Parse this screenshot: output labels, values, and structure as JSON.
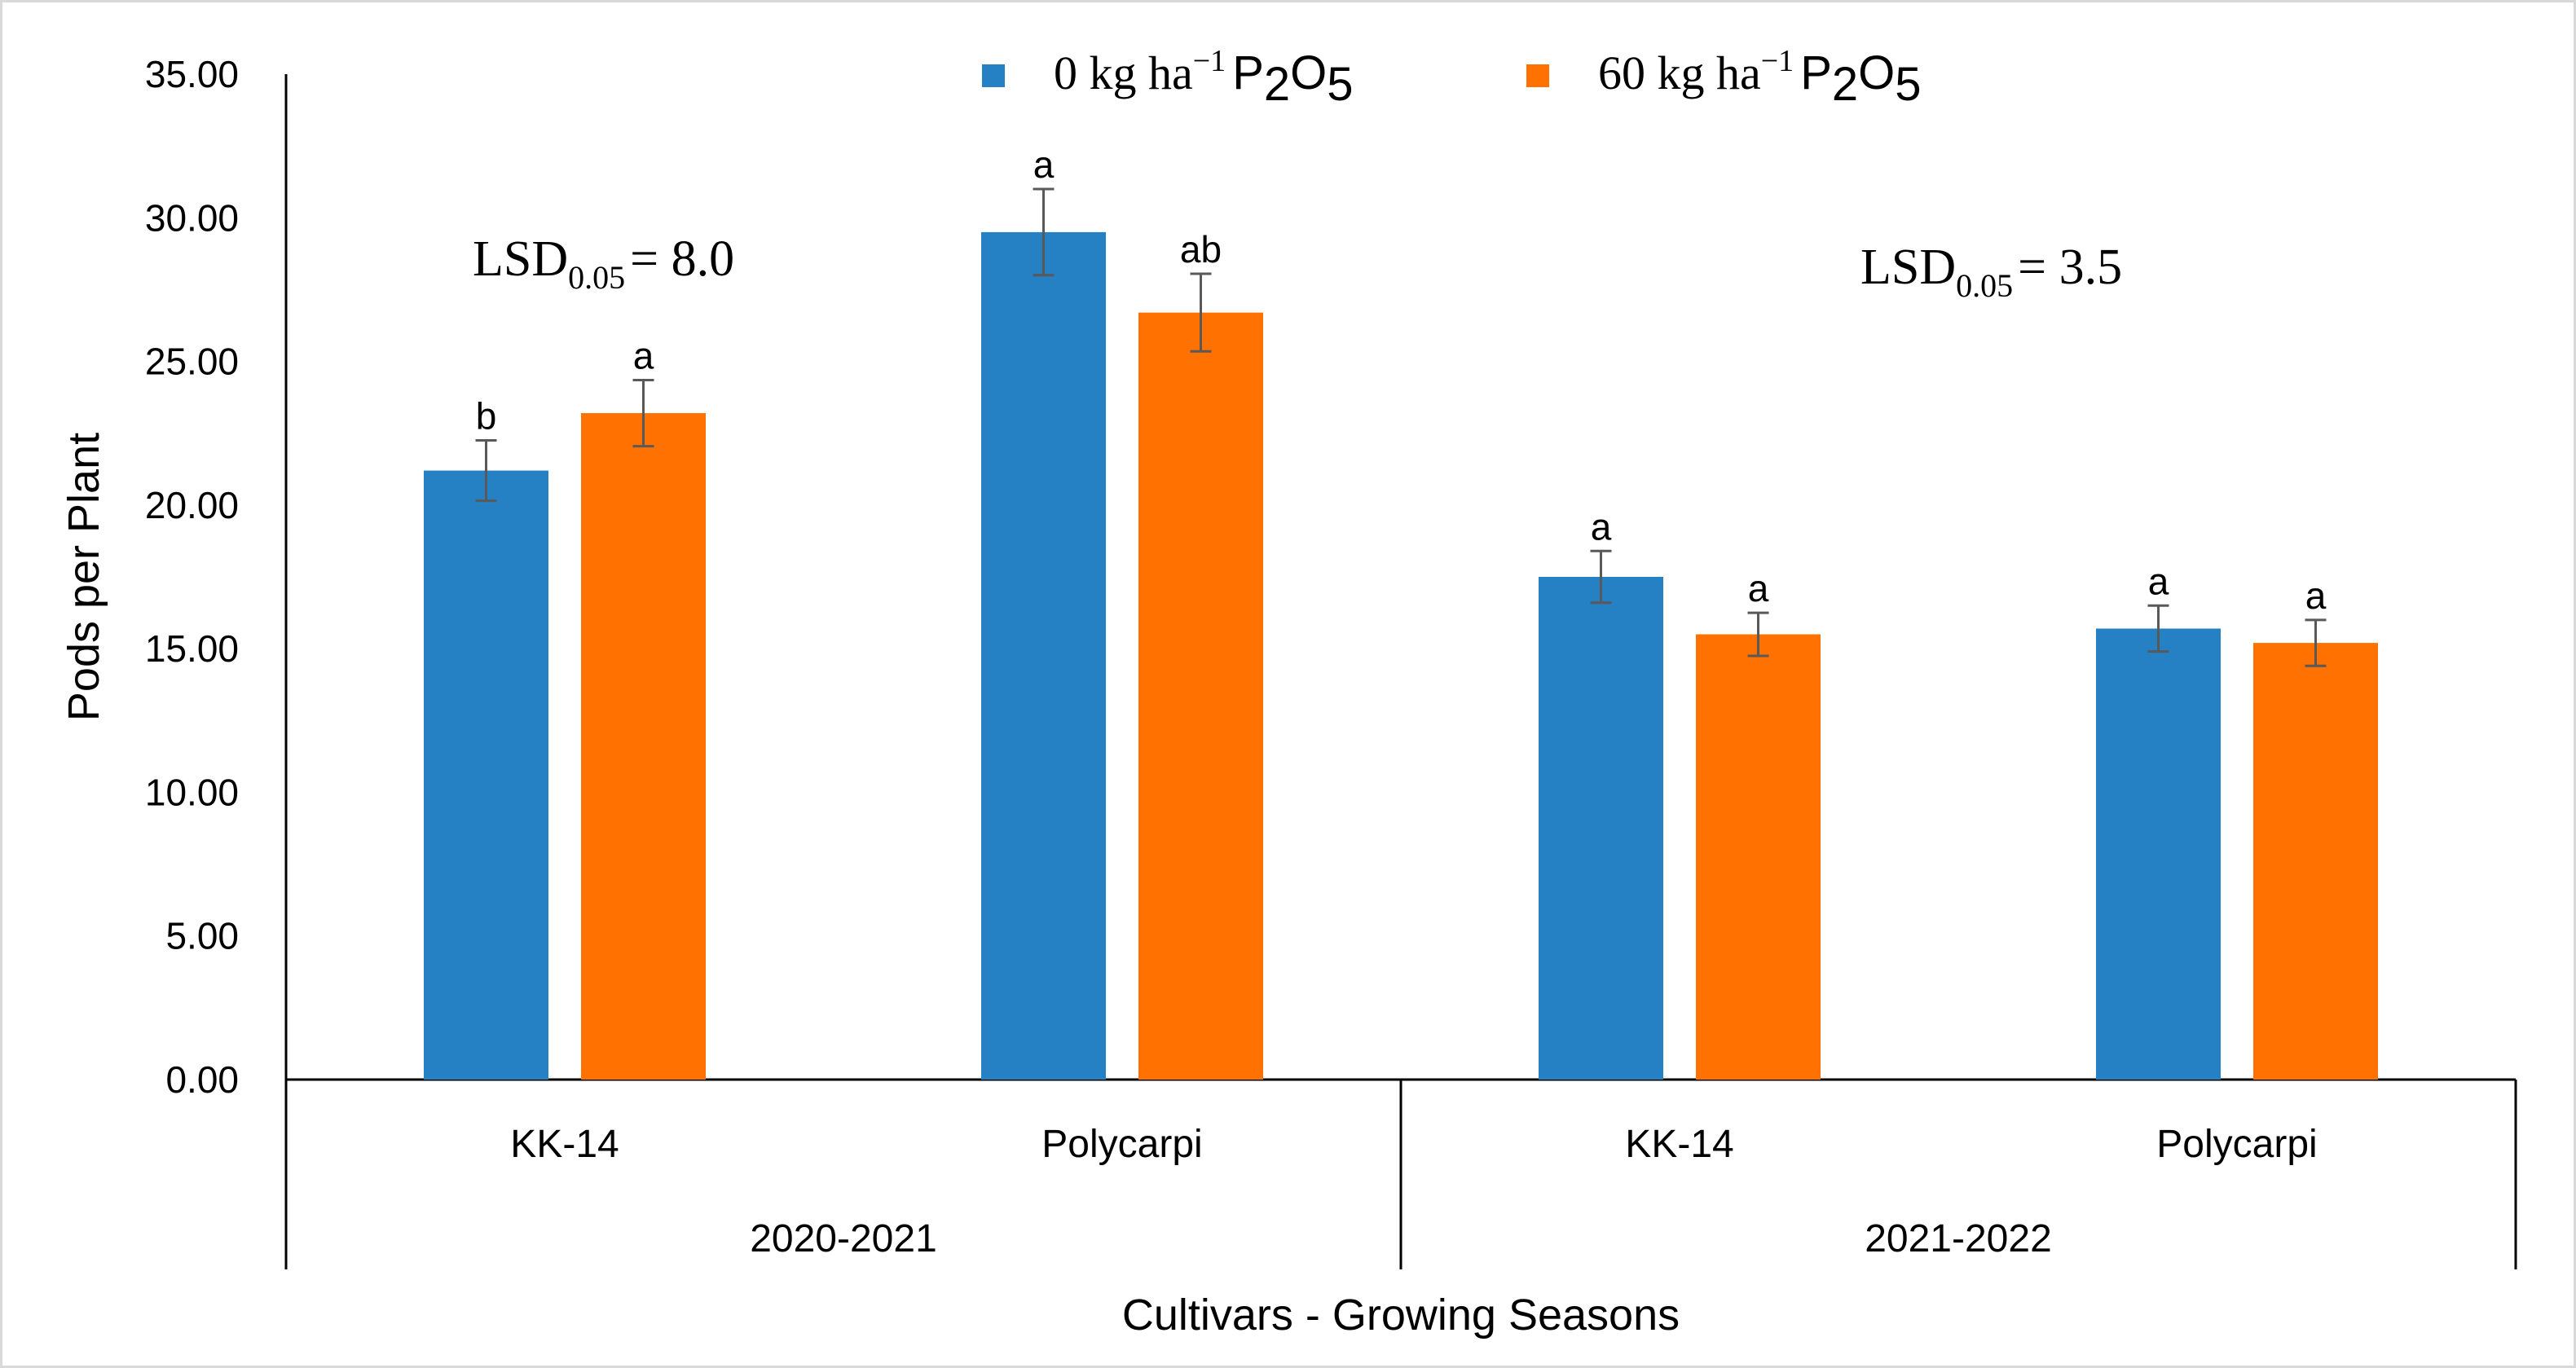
{
  "chart_data": {
    "type": "bar",
    "ylabel": "Pods per Plant",
    "xlabel": "Cultivars - Growing Seasons",
    "ylim": [
      0,
      35
    ],
    "yticks": [
      "0.00",
      "5.00",
      "10.00",
      "15.00",
      "20.00",
      "25.00",
      "30.00",
      "35.00"
    ],
    "legend_position": "top",
    "groups": [
      {
        "name": "2020-2021",
        "categories": [
          "KK-14",
          "Polycarpi"
        ]
      },
      {
        "name": "2021-2022",
        "categories": [
          "KK-14",
          "Polycarpi"
        ]
      }
    ],
    "categories": [
      "KK-14",
      "Polycarpi",
      "KK-14",
      "Polycarpi"
    ],
    "series": [
      {
        "name": "0 kg ha⁻¹ P₂O₅",
        "legend_text": "0 kg ha",
        "legend_sup": "−1",
        "legend_chem": "P",
        "legend_sub1": "2",
        "legend_chem2": "O",
        "legend_sub2": "5",
        "color": "#2581c4",
        "values": [
          21.2,
          29.5,
          17.5,
          15.7
        ],
        "errors": [
          1.05,
          1.5,
          0.9,
          0.8
        ],
        "letters": [
          "b",
          "a",
          "a",
          "a"
        ]
      },
      {
        "name": "60 kg ha⁻¹ P₂O₅",
        "legend_text": "60 kg ha",
        "legend_sup": "−1",
        "legend_chem": "P",
        "legend_sub1": "2",
        "legend_chem2": "O",
        "legend_sub2": "5",
        "color": "#ff7100",
        "values": [
          23.2,
          26.7,
          15.5,
          15.2
        ],
        "errors": [
          1.15,
          1.35,
          0.75,
          0.8
        ],
        "letters": [
          "a",
          "ab",
          "a",
          "a"
        ]
      }
    ],
    "annotations": [
      {
        "text": "LSD",
        "sub": "0.05",
        "rest": "= 8.0",
        "group": "2020-2021"
      },
      {
        "text": "LSD",
        "sub": "0.05",
        "rest": "= 3.5",
        "group": "2021-2022"
      }
    ],
    "error_bar_color": "#595959"
  }
}
